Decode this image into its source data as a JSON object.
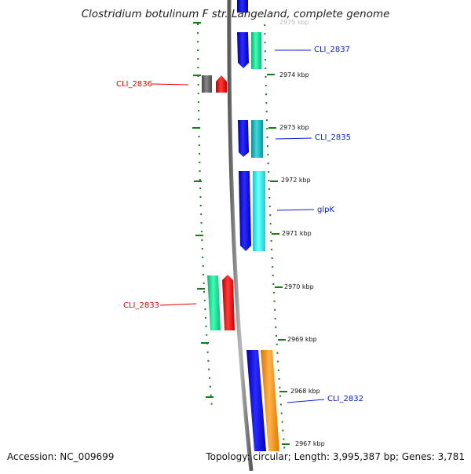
{
  "title": "Clostridium botulinum F str. Langeland, complete genome",
  "footer": {
    "accession": "Accession: NC_009699",
    "summary": "Topology: circular; Length: 3,995,387 bp; Genes: 3,781"
  },
  "colors": {
    "backbone": "#8a8a8a",
    "tick": "#1a7a1a",
    "label_forward": "#0a22c8",
    "label_reverse": "#e00000"
  },
  "ticks": {
    "unit": "kbp",
    "partial_top_label": "2975 kbp",
    "labels": [
      "2974 kbp",
      "2973 kbp",
      "2972 kbp",
      "2971 kbp",
      "2970 kbp",
      "2969 kbp",
      "2968 kbp",
      "2967 kbp"
    ]
  },
  "genes": [
    {
      "id": "CLI_2837",
      "label": "CLI_2837",
      "strand": "reverse",
      "colors": [
        "#1c1cdc",
        "#19e39a"
      ]
    },
    {
      "id": "CLI_2836",
      "label": "CLI_2836",
      "strand": "forward",
      "colors": [
        "#6a6a6a",
        "#ff1a1a"
      ]
    },
    {
      "id": "CLI_2835",
      "label": "CLI_2835",
      "strand": "reverse",
      "colors": [
        "#1c1cdc",
        "#1cc3c9"
      ]
    },
    {
      "id": "glpK",
      "label": "glpK",
      "strand": "reverse",
      "colors": [
        "#1c1cdc",
        "#1ef2f2"
      ]
    },
    {
      "id": "CLI_2833",
      "label": "CLI_2833",
      "strand": "forward",
      "colors": [
        "#19e39a",
        "#ff1a1a"
      ]
    },
    {
      "id": "CLI_2832",
      "label": "CLI_2832",
      "strand": "reverse",
      "colors": [
        "#1c1cdc",
        "#ff9a12"
      ]
    }
  ]
}
